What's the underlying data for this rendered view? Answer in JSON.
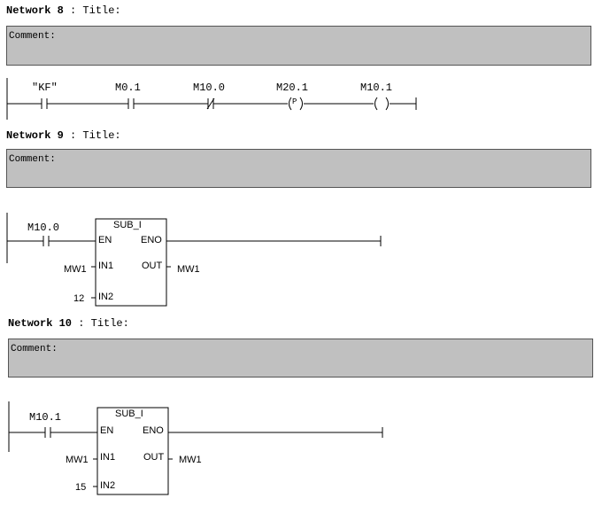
{
  "networks": [
    {
      "label": "Network 8",
      "title": ": Title:",
      "comment": "Comment:",
      "elements": [
        {
          "type": "contact_no",
          "operand": "\"KF\""
        },
        {
          "type": "contact_no",
          "operand": "M0.1"
        },
        {
          "type": "contact_nc",
          "operand": "M10.0"
        },
        {
          "type": "coil_p",
          "operand": "M20.1",
          "symbol": "P"
        },
        {
          "type": "coil",
          "operand": "M10.1"
        }
      ]
    },
    {
      "label": "Network 9",
      "title": ": Title:",
      "comment": "Comment:",
      "contact": "M10.0",
      "box": {
        "name": "SUB_I",
        "en": "EN",
        "eno": "ENO",
        "in1": "IN1",
        "in2": "IN2",
        "out": "OUT",
        "in1_val": "MW1",
        "in2_val": "12",
        "out_val": "MW1"
      }
    },
    {
      "label": "Network 10",
      "title": ": Title:",
      "comment": "Comment:",
      "contact": "M10.1",
      "box": {
        "name": "SUB_I",
        "en": "EN",
        "eno": "ENO",
        "in1": "IN1",
        "in2": "IN2",
        "out": "OUT",
        "in1_val": "MW1",
        "in2_val": "15",
        "out_val": "MW1"
      }
    }
  ]
}
